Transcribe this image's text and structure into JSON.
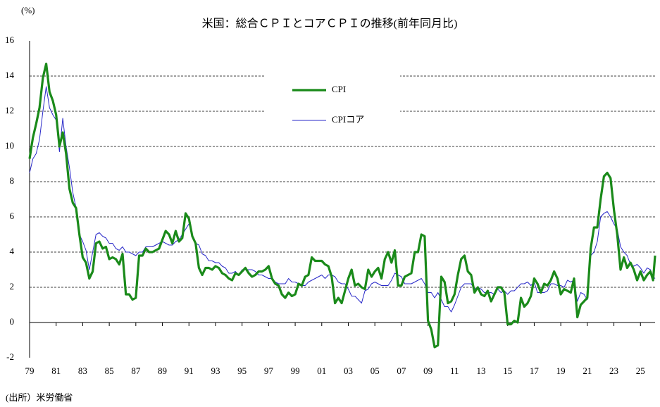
{
  "chart_data": {
    "type": "line",
    "title": "米国：総合ＣＰＩとコアＣＰＩの推移(前年同月比)",
    "y_unit": "(%)",
    "source": "(出所）米労働省",
    "legend": "top-center",
    "grid": true,
    "xlim": [
      1979,
      2026.1
    ],
    "ylim": [
      -2,
      16
    ],
    "yticks": [
      -2,
      0,
      2,
      4,
      6,
      8,
      10,
      12,
      14,
      16
    ],
    "xticks": [
      {
        "value": 1979,
        "label": "79"
      },
      {
        "value": 1981,
        "label": "81"
      },
      {
        "value": 1983,
        "label": "83"
      },
      {
        "value": 1985,
        "label": "85"
      },
      {
        "value": 1987,
        "label": "87"
      },
      {
        "value": 1989,
        "label": "89"
      },
      {
        "value": 1991,
        "label": "91"
      },
      {
        "value": 1993,
        "label": "93"
      },
      {
        "value": 1995,
        "label": "95"
      },
      {
        "value": 1997,
        "label": "97"
      },
      {
        "value": 1999,
        "label": "99"
      },
      {
        "value": 2001,
        "label": "01"
      },
      {
        "value": 2003,
        "label": "03"
      },
      {
        "value": 2005,
        "label": "05"
      },
      {
        "value": 2007,
        "label": "07"
      },
      {
        "value": 2009,
        "label": "09"
      },
      {
        "value": 2011,
        "label": "11"
      },
      {
        "value": 2013,
        "label": "13"
      },
      {
        "value": 2015,
        "label": "15"
      },
      {
        "value": 2017,
        "label": "17"
      },
      {
        "value": 2019,
        "label": "19"
      },
      {
        "value": 2021,
        "label": "21"
      },
      {
        "value": 2023,
        "label": "23"
      },
      {
        "value": 2025,
        "label": "25"
      }
    ],
    "x": [
      1979,
      1979.25,
      1979.5,
      1979.75,
      1980,
      1980.25,
      1980.5,
      1980.75,
      1981,
      1981.25,
      1981.5,
      1981.75,
      1982,
      1982.25,
      1982.5,
      1982.75,
      1983,
      1983.25,
      1983.5,
      1983.75,
      1984,
      1984.25,
      1984.5,
      1984.75,
      1985,
      1985.25,
      1985.5,
      1985.75,
      1986,
      1986.25,
      1986.5,
      1986.75,
      1987,
      1987.25,
      1987.5,
      1987.75,
      1988,
      1988.25,
      1988.5,
      1988.75,
      1989,
      1989.25,
      1989.5,
      1989.75,
      1990,
      1990.25,
      1990.5,
      1990.75,
      1991,
      1991.25,
      1991.5,
      1991.75,
      1992,
      1992.25,
      1992.5,
      1992.75,
      1993,
      1993.25,
      1993.5,
      1993.75,
      1994,
      1994.25,
      1994.5,
      1994.75,
      1995,
      1995.25,
      1995.5,
      1995.75,
      1996,
      1996.25,
      1996.5,
      1996.75,
      1997,
      1997.25,
      1997.5,
      1997.75,
      1998,
      1998.25,
      1998.5,
      1998.75,
      1999,
      1999.25,
      1999.5,
      1999.75,
      2000,
      2000.25,
      2000.5,
      2000.75,
      2001,
      2001.25,
      2001.5,
      2001.75,
      2002,
      2002.25,
      2002.5,
      2002.75,
      2003,
      2003.25,
      2003.5,
      2003.75,
      2004,
      2004.25,
      2004.5,
      2004.75,
      2005,
      2005.25,
      2005.5,
      2005.75,
      2006,
      2006.25,
      2006.5,
      2006.75,
      2007,
      2007.25,
      2007.5,
      2007.75,
      2008,
      2008.25,
      2008.5,
      2008.75,
      2009,
      2009.25,
      2009.5,
      2009.75,
      2010,
      2010.25,
      2010.5,
      2010.75,
      2011,
      2011.25,
      2011.5,
      2011.75,
      2012,
      2012.25,
      2012.5,
      2012.75,
      2013,
      2013.25,
      2013.5,
      2013.75,
      2014,
      2014.25,
      2014.5,
      2014.75,
      2015,
      2015.25,
      2015.5,
      2015.75,
      2016,
      2016.25,
      2016.5,
      2016.75,
      2017,
      2017.25,
      2017.5,
      2017.75,
      2018,
      2018.25,
      2018.5,
      2018.75,
      2019,
      2019.25,
      2019.5,
      2019.75,
      2020,
      2020.25,
      2020.5,
      2020.75,
      2021,
      2021.25,
      2021.5,
      2021.75,
      2022,
      2022.25,
      2022.5,
      2022.75,
      2023,
      2023.25,
      2023.5,
      2023.75,
      2024,
      2024.25,
      2024.5,
      2024.75,
      2025,
      2025.25,
      2025.5,
      2025.75,
      2025.95,
      2026.1
    ],
    "series": [
      {
        "name": "CPI",
        "color": "#1a8a1a",
        "width": 3.2,
        "values": [
          9.3,
          10.5,
          11.3,
          12.2,
          13.9,
          14.7,
          13.1,
          12.6,
          11.8,
          10.0,
          10.8,
          9.6,
          7.6,
          6.8,
          6.5,
          5.0,
          3.7,
          3.4,
          2.5,
          2.9,
          4.5,
          4.6,
          4.2,
          4.3,
          3.6,
          3.7,
          3.6,
          3.3,
          3.9,
          1.6,
          1.6,
          1.3,
          1.4,
          3.8,
          3.8,
          4.2,
          4.0,
          4.0,
          4.1,
          4.2,
          4.7,
          5.2,
          5.0,
          4.5,
          5.2,
          4.6,
          4.8,
          6.2,
          5.9,
          4.9,
          4.5,
          3.1,
          2.7,
          3.1,
          3.1,
          3.0,
          3.2,
          3.1,
          2.8,
          2.7,
          2.5,
          2.4,
          2.8,
          2.7,
          2.9,
          3.1,
          2.8,
          2.6,
          2.7,
          2.9,
          2.9,
          3.0,
          3.2,
          2.5,
          2.2,
          2.1,
          1.6,
          1.4,
          1.7,
          1.5,
          1.6,
          2.2,
          2.1,
          2.6,
          2.7,
          3.7,
          3.5,
          3.5,
          3.5,
          3.3,
          3.2,
          2.6,
          1.1,
          1.4,
          1.1,
          1.8,
          2.5,
          3.0,
          2.1,
          2.2,
          2.0,
          1.9,
          3.0,
          2.6,
          2.9,
          3.1,
          2.5,
          3.6,
          4.0,
          3.4,
          4.1,
          2.1,
          2.1,
          2.6,
          2.7,
          2.8,
          4.0,
          4.0,
          5.0,
          4.9,
          0.1,
          -0.4,
          -1.4,
          -1.3,
          2.6,
          2.3,
          1.1,
          1.2,
          1.6,
          2.7,
          3.6,
          3.8,
          2.9,
          2.7,
          1.7,
          2.0,
          1.6,
          1.5,
          1.8,
          1.2,
          1.6,
          2.0,
          2.0,
          1.7,
          -0.1,
          -0.1,
          0.1,
          0.0,
          1.4,
          0.9,
          1.1,
          1.5,
          2.5,
          2.2,
          1.7,
          2.2,
          2.1,
          2.4,
          2.9,
          2.5,
          1.6,
          1.9,
          1.8,
          1.7,
          2.5,
          0.3,
          1.0,
          1.2,
          1.4,
          4.2,
          5.4,
          5.4,
          7.0,
          8.3,
          8.5,
          8.2,
          6.4,
          5.0,
          3.0,
          3.7,
          3.1,
          3.4,
          3.0,
          2.4,
          2.9,
          2.4,
          2.7,
          2.9,
          2.4,
          3.8
        ]
      },
      {
        "name": "CPIコア",
        "color": "#2828c8",
        "width": 1,
        "values": [
          8.5,
          9.3,
          9.6,
          10.4,
          12.0,
          13.4,
          12.2,
          11.8,
          11.5,
          9.7,
          11.6,
          10.0,
          8.8,
          7.4,
          6.5,
          5.0,
          4.6,
          4.1,
          3.0,
          4.0,
          5.0,
          5.1,
          4.9,
          4.8,
          4.5,
          4.5,
          4.2,
          4.1,
          4.3,
          4.0,
          4.0,
          3.9,
          3.8,
          4.0,
          4.0,
          4.3,
          4.3,
          4.3,
          4.4,
          4.5,
          4.6,
          4.5,
          4.4,
          4.4,
          4.6,
          4.7,
          5.0,
          5.3,
          5.6,
          5.0,
          4.5,
          4.4,
          3.9,
          3.8,
          3.5,
          3.5,
          3.4,
          3.4,
          3.2,
          3.1,
          2.8,
          2.8,
          2.9,
          2.7,
          3.0,
          3.0,
          3.0,
          3.0,
          2.9,
          2.7,
          2.7,
          2.6,
          2.5,
          2.5,
          2.3,
          2.2,
          2.2,
          2.2,
          2.5,
          2.3,
          2.3,
          2.2,
          2.1,
          2.1,
          2.3,
          2.4,
          2.5,
          2.6,
          2.7,
          2.5,
          2.7,
          2.7,
          2.6,
          2.3,
          2.2,
          2.2,
          1.9,
          1.5,
          1.5,
          1.3,
          1.1,
          1.8,
          1.9,
          2.2,
          2.3,
          2.2,
          2.1,
          2.1,
          2.1,
          2.4,
          2.8,
          2.7,
          2.6,
          2.2,
          2.2,
          2.2,
          2.3,
          2.4,
          2.5,
          2.2,
          1.7,
          1.7,
          1.4,
          1.7,
          1.3,
          0.9,
          0.9,
          0.6,
          1.0,
          1.5,
          2.0,
          2.2,
          2.2,
          2.2,
          1.9,
          2.0,
          1.9,
          1.7,
          1.7,
          1.7,
          1.6,
          1.9,
          1.7,
          1.8,
          1.6,
          1.8,
          1.8,
          2.0,
          2.2,
          2.2,
          2.3,
          2.1,
          2.3,
          1.7,
          1.7,
          1.7,
          1.8,
          2.2,
          2.2,
          2.1,
          2.1,
          2.0,
          2.4,
          2.3,
          2.4,
          1.2,
          1.7,
          1.6,
          1.3,
          3.8,
          4.0,
          4.6,
          6.0,
          6.2,
          6.3,
          6.0,
          5.6,
          5.3,
          4.3,
          4.0,
          3.8,
          3.3,
          3.2,
          3.3,
          3.1,
          2.8,
          3.1,
          3.0,
          2.6,
          2.5
        ]
      }
    ]
  }
}
